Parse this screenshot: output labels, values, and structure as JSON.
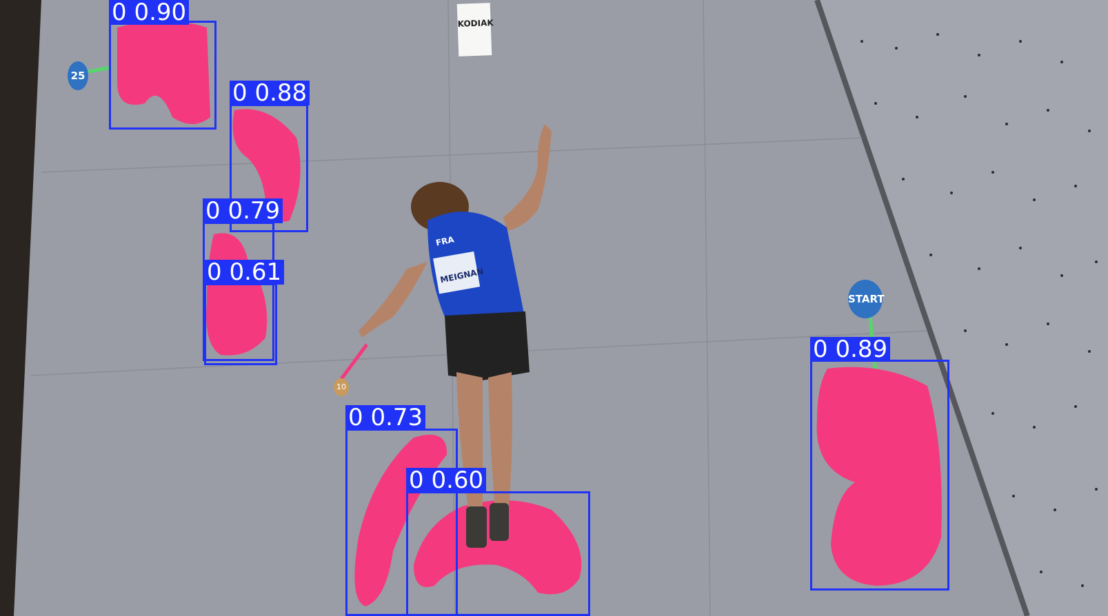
{
  "scene": {
    "wall_color": "#9a9da6",
    "hold_color": "#f5397e",
    "box_color": "#1f32f5",
    "markers": {
      "start": "START",
      "route_25": "25",
      "route_10": "10"
    },
    "sponsor": "KODIAK",
    "athlete": {
      "nation": "FRA",
      "name": "MEIGNAN"
    }
  },
  "detections": [
    {
      "class_id": "0",
      "confidence": "0.90",
      "label": "0 0.90"
    },
    {
      "class_id": "0",
      "confidence": "0.88",
      "label": "0 0.88"
    },
    {
      "class_id": "0",
      "confidence": "0.79",
      "label": "0 0.79"
    },
    {
      "class_id": "0",
      "confidence": "0.61",
      "label": "0 0.61"
    },
    {
      "class_id": "0",
      "confidence": "0.73",
      "label": "0 0.73"
    },
    {
      "class_id": "0",
      "confidence": "0.60",
      "label": "0 0.60"
    },
    {
      "class_id": "0",
      "confidence": "0.89",
      "label": "0 0.89"
    }
  ]
}
